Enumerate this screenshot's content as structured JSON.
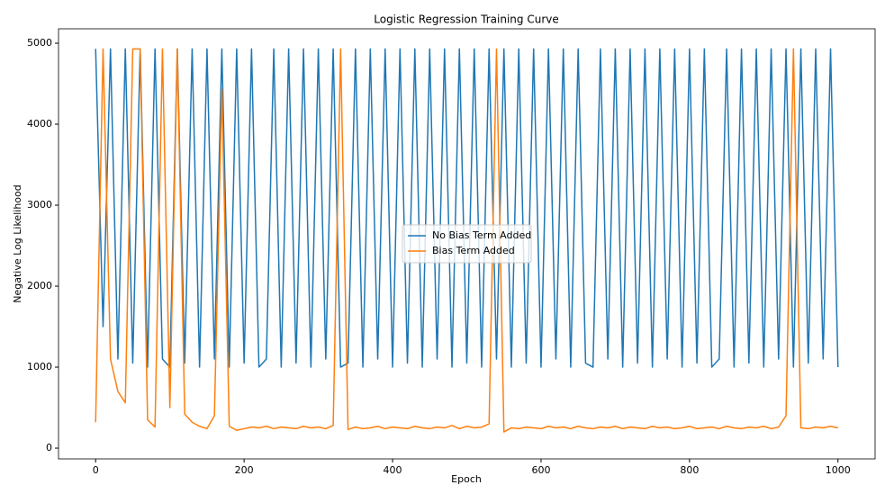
{
  "chart_data": {
    "type": "line",
    "title": "Logistic Regression Training Curve",
    "xlabel": "Epoch",
    "ylabel": "Negative Log Likelihood",
    "x": [
      0,
      10,
      20,
      30,
      40,
      50,
      60,
      70,
      80,
      90,
      100,
      110,
      120,
      130,
      140,
      150,
      160,
      170,
      180,
      190,
      200,
      210,
      220,
      230,
      240,
      250,
      260,
      270,
      280,
      290,
      300,
      310,
      320,
      330,
      340,
      350,
      360,
      370,
      380,
      390,
      400,
      410,
      420,
      430,
      440,
      450,
      460,
      470,
      480,
      490,
      500,
      510,
      520,
      530,
      540,
      550,
      560,
      570,
      580,
      590,
      600,
      610,
      620,
      630,
      640,
      650,
      660,
      670,
      680,
      690,
      700,
      710,
      720,
      730,
      740,
      750,
      760,
      770,
      780,
      790,
      800,
      810,
      820,
      830,
      840,
      850,
      860,
      870,
      880,
      890,
      900,
      910,
      920,
      930,
      940,
      950,
      960,
      970,
      980,
      990,
      1000
    ],
    "series": [
      {
        "name": "No Bias Term Added",
        "color": "#1f77b4",
        "values": [
          4930,
          1500,
          4930,
          1100,
          4930,
          1050,
          4930,
          1000,
          4930,
          1100,
          1000,
          4930,
          1050,
          4930,
          1000,
          4930,
          1100,
          4930,
          1000,
          4930,
          1050,
          4930,
          1000,
          1100,
          4930,
          1000,
          4930,
          1050,
          4930,
          1000,
          4930,
          1100,
          4930,
          1000,
          1050,
          4930,
          1000,
          4930,
          1100,
          4930,
          1000,
          4930,
          1050,
          4930,
          1000,
          4930,
          1100,
          4930,
          1000,
          4930,
          1050,
          4930,
          1000,
          4930,
          1100,
          4930,
          1000,
          4930,
          1050,
          4930,
          1000,
          4930,
          1100,
          4930,
          1000,
          4930,
          1050,
          1000,
          4930,
          1100,
          4930,
          1000,
          4930,
          1050,
          4930,
          1000,
          4930,
          1100,
          4930,
          1000,
          4930,
          1050,
          4930,
          1000,
          1100,
          4930,
          1000,
          4930,
          1050,
          4930,
          1000,
          4930,
          1100,
          4930,
          1000,
          4930,
          1050,
          4930,
          1100,
          4930,
          1000
        ]
      },
      {
        "name": "Bias Term Added",
        "color": "#ff7f0e",
        "values": [
          320,
          4930,
          1100,
          700,
          560,
          4930,
          4930,
          350,
          260,
          4930,
          500,
          4930,
          420,
          320,
          270,
          240,
          400,
          4430,
          270,
          220,
          240,
          260,
          250,
          270,
          240,
          260,
          250,
          240,
          270,
          250,
          260,
          240,
          280,
          4930,
          230,
          260,
          240,
          250,
          270,
          240,
          260,
          250,
          240,
          270,
          250,
          240,
          260,
          250,
          280,
          240,
          270,
          250,
          260,
          300,
          4930,
          200,
          250,
          240,
          260,
          250,
          240,
          270,
          250,
          260,
          240,
          270,
          250,
          240,
          260,
          250,
          270,
          240,
          260,
          250,
          240,
          270,
          250,
          260,
          240,
          250,
          270,
          240,
          250,
          260,
          240,
          270,
          250,
          240,
          260,
          250,
          270,
          240,
          260,
          400,
          4930,
          250,
          240,
          260,
          250,
          270,
          250
        ]
      }
    ],
    "xlim": [
      -50,
      1050
    ],
    "xticks": [
      0,
      200,
      400,
      600,
      800,
      1000
    ],
    "ylim": [
      -133,
      5178
    ],
    "yticks": [
      0,
      1000,
      2000,
      3000,
      4000,
      5000
    ],
    "legend": "center"
  }
}
